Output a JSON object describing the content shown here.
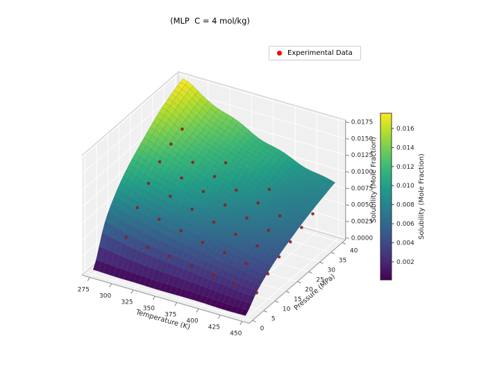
{
  "figure": {
    "background": "#ffffff"
  },
  "chart_data": {
    "type": "surface3d",
    "title": "(MLP  C = 4 mol/kg)",
    "legend": {
      "label": "Experimental Data",
      "marker_color": "#ff0000",
      "position": "upper-right"
    },
    "axes": {
      "xlabel": "Temperature (K)",
      "ylabel": "Pressure (MPa)",
      "zlabel": "Solubility (Mole Fraction)",
      "x_ticks": [
        275,
        300,
        325,
        350,
        375,
        400,
        425,
        450
      ],
      "y_ticks": [
        0,
        5,
        10,
        15,
        20,
        25,
        30,
        35,
        40
      ],
      "z_ticks": [
        0.0,
        0.0025,
        0.005,
        0.0075,
        0.01,
        0.0125,
        0.015,
        0.0175
      ],
      "x_range": [
        266,
        458
      ],
      "y_range": [
        -1.5,
        41.5
      ],
      "z_range": [
        -0.0003,
        0.0178
      ],
      "grid": true,
      "view": {
        "elev": 30,
        "azim": -60
      }
    },
    "surface": {
      "name": "MLP predicted solubility surface",
      "colormap": "viridis",
      "temperatures": [
        275,
        300,
        325,
        350,
        375,
        400,
        425,
        450
      ],
      "pressures": [
        0,
        5,
        10,
        15,
        20,
        25,
        30,
        35,
        40
      ],
      "solubility": [
        [
          0.0004,
          0.0058,
          0.009,
          0.0113,
          0.013,
          0.0144,
          0.0156,
          0.0166,
          0.0175
        ],
        [
          0.0003,
          0.005,
          0.008,
          0.0101,
          0.0117,
          0.013,
          0.014,
          0.0149,
          0.0157
        ],
        [
          0.0003,
          0.0044,
          0.0071,
          0.0091,
          0.0105,
          0.0116,
          0.0126,
          0.0134,
          0.0141
        ],
        [
          0.0002,
          0.0039,
          0.0063,
          0.0081,
          0.0094,
          0.0104,
          0.0113,
          0.012,
          0.0127
        ],
        [
          0.0002,
          0.0034,
          0.0056,
          0.0072,
          0.0084,
          0.0093,
          0.0101,
          0.0108,
          0.0114
        ],
        [
          0.0002,
          0.003,
          0.0049,
          0.0063,
          0.0074,
          0.0083,
          0.009,
          0.0096,
          0.0102
        ],
        [
          0.0001,
          0.0026,
          0.0043,
          0.0056,
          0.0066,
          0.0074,
          0.0081,
          0.0087,
          0.0092
        ],
        [
          0.0001,
          0.0022,
          0.0037,
          0.0049,
          0.0058,
          0.0066,
          0.0072,
          0.0078,
          0.0084
        ]
      ]
    },
    "scatter": {
      "name": "Experimental Data",
      "color": "#ff0000",
      "depthshaded_color": "#8b1f1f",
      "points": [
        [
          300,
          5,
          0.0048
        ],
        [
          300,
          10,
          0.0078
        ],
        [
          300,
          15,
          0.01
        ],
        [
          300,
          20,
          0.0118
        ],
        [
          300,
          25,
          0.013
        ],
        [
          300,
          30,
          0.0138
        ],
        [
          325,
          5,
          0.0042
        ],
        [
          325,
          10,
          0.007
        ],
        [
          325,
          15,
          0.009
        ],
        [
          325,
          20,
          0.0103
        ],
        [
          325,
          25,
          0.0112
        ],
        [
          350,
          5,
          0.0038
        ],
        [
          350,
          10,
          0.0062
        ],
        [
          350,
          15,
          0.008
        ],
        [
          350,
          20,
          0.0092
        ],
        [
          350,
          25,
          0.01
        ],
        [
          350,
          30,
          0.0106
        ],
        [
          375,
          5,
          0.0033
        ],
        [
          375,
          10,
          0.0054
        ],
        [
          375,
          15,
          0.007
        ],
        [
          375,
          20,
          0.0081
        ],
        [
          375,
          25,
          0.0089
        ],
        [
          400,
          5,
          0.0029
        ],
        [
          400,
          10,
          0.0048
        ],
        [
          400,
          15,
          0.0061
        ],
        [
          400,
          20,
          0.0071
        ],
        [
          400,
          25,
          0.0079
        ],
        [
          400,
          30,
          0.0085
        ],
        [
          425,
          5,
          0.0025
        ],
        [
          425,
          10,
          0.0041
        ],
        [
          425,
          15,
          0.0053
        ],
        [
          425,
          20,
          0.0062
        ],
        [
          425,
          25,
          0.0069
        ],
        [
          450,
          5,
          0.0021
        ],
        [
          450,
          10,
          0.0035
        ],
        [
          450,
          15,
          0.0046
        ],
        [
          450,
          20,
          0.0054
        ],
        [
          450,
          25,
          0.0061
        ],
        [
          450,
          30,
          0.0067
        ]
      ]
    },
    "colorbar": {
      "label": "Solubility (Mole Fraction)",
      "ticks": [
        0.002,
        0.004,
        0.006,
        0.008,
        0.01,
        0.012,
        0.014,
        0.016
      ],
      "vmin": 0.0001,
      "vmax": 0.0176,
      "colormap": "viridis"
    },
    "colors": {
      "pane": "#f0f0f0",
      "pane_grid": "#ffffff",
      "box_edge": "#cccccc",
      "spine": "#9a9a9a",
      "tick": "#707070",
      "text": "#262626",
      "mesh_line": "rgba(60,60,60,0.28)"
    }
  }
}
